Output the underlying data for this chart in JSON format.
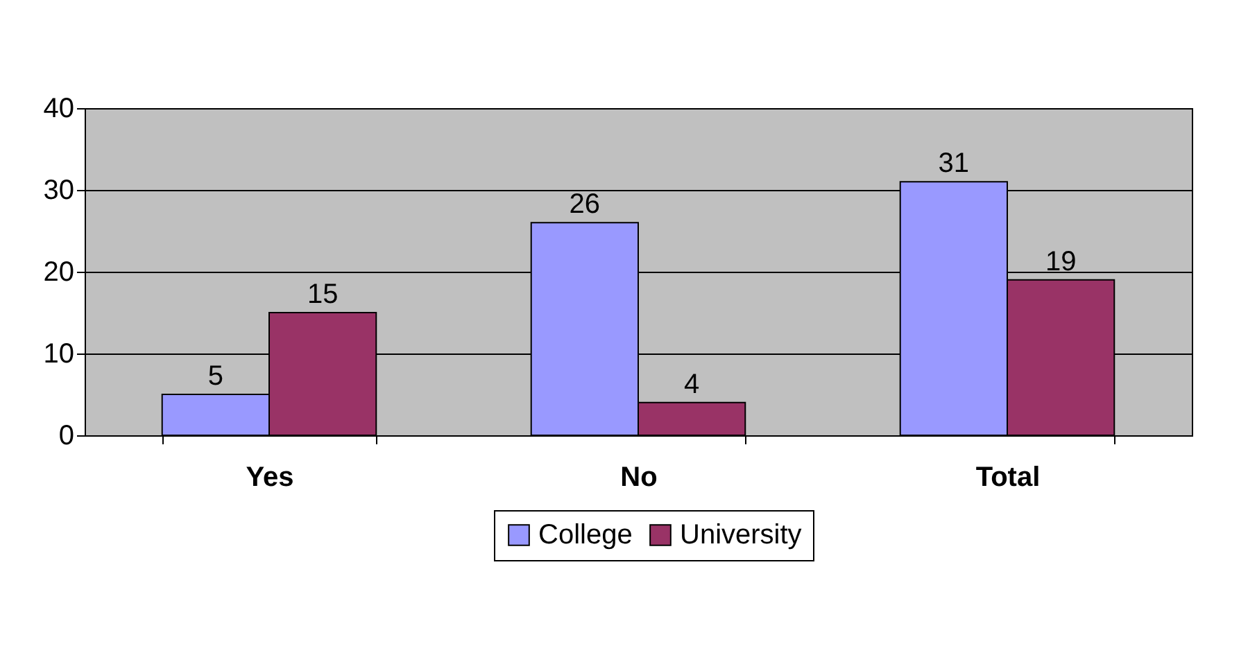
{
  "chart_data": {
    "type": "bar",
    "categories": [
      "Yes",
      "No",
      "Total"
    ],
    "series": [
      {
        "name": "College",
        "color": "#9999ff",
        "values": [
          5,
          26,
          31
        ]
      },
      {
        "name": "University",
        "color": "#993366",
        "values": [
          15,
          4,
          19
        ]
      }
    ],
    "ylim": [
      0,
      40
    ],
    "yticks": [
      0,
      10,
      20,
      30,
      40
    ],
    "grid": "y",
    "legend": "bottom",
    "data_labels": true
  }
}
